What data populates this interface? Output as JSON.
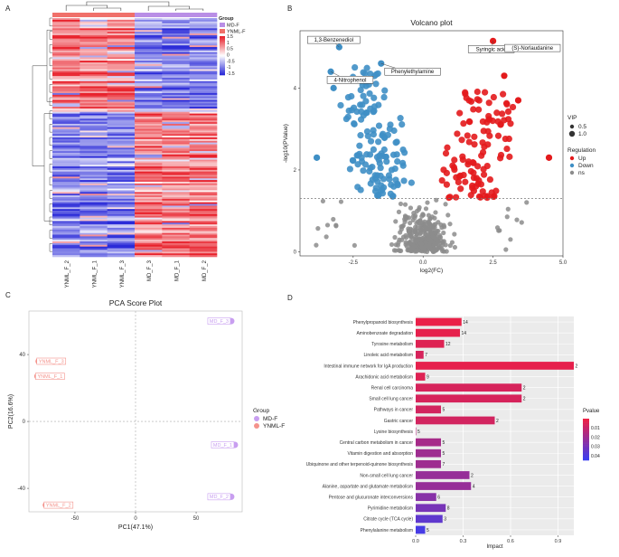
{
  "colors": {
    "heat_low": "#2b2bd8",
    "heat_mid": "#ffffff",
    "heat_high": "#e8202a",
    "group_md": "#b98ee6",
    "group_ynml": "#f0706a",
    "up": "#e31a1c",
    "down": "#3f8fc5",
    "ns": "#8c8c8c",
    "pca_md": "#c89ef0",
    "pca_ynml": "#f4938c"
  },
  "panels": {
    "a": {
      "letter": "A"
    },
    "b": {
      "letter": "B"
    },
    "c": {
      "letter": "C"
    },
    "d": {
      "letter": "D"
    }
  },
  "chart_data": [
    {
      "type": "heatmap",
      "panel": "A",
      "samples": [
        "YNML_F_2",
        "YNML_F_1",
        "YNML_F_3",
        "MD_F_3",
        "MD_F_1",
        "MD_F_2"
      ],
      "sample_groups": [
        "YNML-F",
        "YNML-F",
        "YNML-F",
        "MD-F",
        "MD-F",
        "MD-F"
      ],
      "row_count": 140,
      "scale_range": [
        -1.5,
        1.5
      ],
      "legend": {
        "group_title": "Group",
        "group_entries": [
          "MD-F",
          "YNML-F"
        ],
        "scale_ticks": [
          "1.5",
          "1",
          "0.5",
          "0",
          "-0.5",
          "-1",
          "-1.5"
        ]
      }
    },
    {
      "type": "scatter",
      "panel": "B",
      "title": "Volcano plot",
      "xlabel": "log2(FC)",
      "ylabel": "-log10(PValue)",
      "xlim": [
        -4.4,
        5.0
      ],
      "ylim": [
        -0.1,
        5.4
      ],
      "xticks": [
        -2.5,
        0.0,
        2.5,
        5.0
      ],
      "xtick_labels": [
        "-2.5",
        "0.0",
        "2.5",
        "5.0"
      ],
      "yticks": [
        0,
        2,
        4
      ],
      "ytick_labels": [
        "0",
        "2",
        "4"
      ],
      "threshold_y": 1.3,
      "annotations": [
        {
          "label": "1,3-Benzenediol",
          "x": -3.0,
          "y": 5.0
        },
        {
          "label": "Phenylethylamine",
          "x": -1.5,
          "y": 4.6
        },
        {
          "label": "4-Nitrophenol",
          "x": -3.3,
          "y": 4.4
        },
        {
          "label": "Syringic acid",
          "x": 2.5,
          "y": 5.15
        },
        {
          "label": "(S)-Norlaudanine",
          "x": 4.0,
          "y": 5.0
        }
      ],
      "legend": {
        "vip_title": "VIP",
        "vip_entries": [
          "0.5",
          "1.0"
        ],
        "reg_title": "Regulation",
        "reg_entries": [
          "Up",
          "Down",
          "ns"
        ]
      }
    },
    {
      "type": "scatter",
      "panel": "C",
      "title": "PCA Score Plot",
      "xlabel": "PC1(47.1%)",
      "ylabel": "PC2(16.6%)",
      "xlim": [
        -88,
        88
      ],
      "ylim": [
        -54,
        66
      ],
      "xticks": [
        -50,
        0,
        50
      ],
      "xtick_labels": [
        "-50",
        "0",
        "50"
      ],
      "yticks": [
        -40,
        0,
        40
      ],
      "ytick_labels": [
        "-40",
        "0",
        "40"
      ],
      "points": [
        {
          "label": "MD_F_3",
          "group": "MD-F",
          "x": 79,
          "y": 60
        },
        {
          "label": "MD_F_1",
          "group": "MD-F",
          "x": 82,
          "y": -14
        },
        {
          "label": "MD_F_2",
          "group": "MD-F",
          "x": 79,
          "y": -45
        },
        {
          "label": "YNML_F_3",
          "group": "YNML-F",
          "x": -80,
          "y": 36
        },
        {
          "label": "YNML_F_1",
          "group": "YNML-F",
          "x": -81,
          "y": 27
        },
        {
          "label": "YNML_F_2",
          "group": "YNML-F",
          "x": -74,
          "y": -50
        }
      ],
      "legend": {
        "title": "Group",
        "entries": [
          "MD-F",
          "YNML-F"
        ]
      }
    },
    {
      "type": "bar",
      "panel": "D",
      "orientation": "horizontal",
      "xlabel": "Impact",
      "xlim": [
        0,
        1.0
      ],
      "xticks": [
        0.0,
        0.3,
        0.6,
        0.9
      ],
      "xtick_labels": [
        "0.0",
        "0.3",
        "0.6",
        "0.9"
      ],
      "categories": [
        "Phenylpropanoid biosynthesis",
        "Aminobenzoate degradation",
        "Tyrosine metabolism",
        "Linoleic acid metabolism",
        "Intestinal immune network for IgA production",
        "Arachidonic acid metabolism",
        "Renal cell carcinoma",
        "Small cell lung cancer",
        "Pathways in cancer",
        "Gastric cancer",
        "Lysine biosynthesis",
        "Central carbon metabolism in cancer",
        "Vitamin digestion and absorption",
        "Ubiquinone and other terpenoid-quinone biosynthesis",
        "Non-small cell lung cancer",
        "Alanine, aspartate and glutamate metabolism",
        "Pentose and glucuronate interconversions",
        "Pyrimidine metabolism",
        "Citrate cycle (TCA cycle)",
        "Phenylalanine metabolism"
      ],
      "values": [
        0.29,
        0.28,
        0.18,
        0.05,
        1.0,
        0.06,
        0.67,
        0.67,
        0.16,
        0.5,
        0.0,
        0.16,
        0.16,
        0.16,
        0.34,
        0.35,
        0.13,
        0.19,
        0.17,
        0.06
      ],
      "counts": [
        "14",
        "14",
        "12",
        "7",
        "2",
        "9",
        "2",
        "2",
        "5",
        "2",
        "5",
        "5",
        "5",
        "7",
        "2",
        "4",
        "6",
        "8",
        "3",
        "5"
      ],
      "pvalues": [
        0.001,
        0.002,
        0.004,
        0.006,
        0.002,
        0.004,
        0.006,
        0.006,
        0.007,
        0.007,
        0.015,
        0.018,
        0.02,
        0.02,
        0.022,
        0.022,
        0.026,
        0.03,
        0.036,
        0.042
      ],
      "legend": {
        "title": "Pvalue",
        "ticks": [
          "0.01",
          "0.02",
          "0.03",
          "0.04"
        ],
        "range": [
          0.0,
          0.045
        ]
      }
    }
  ]
}
